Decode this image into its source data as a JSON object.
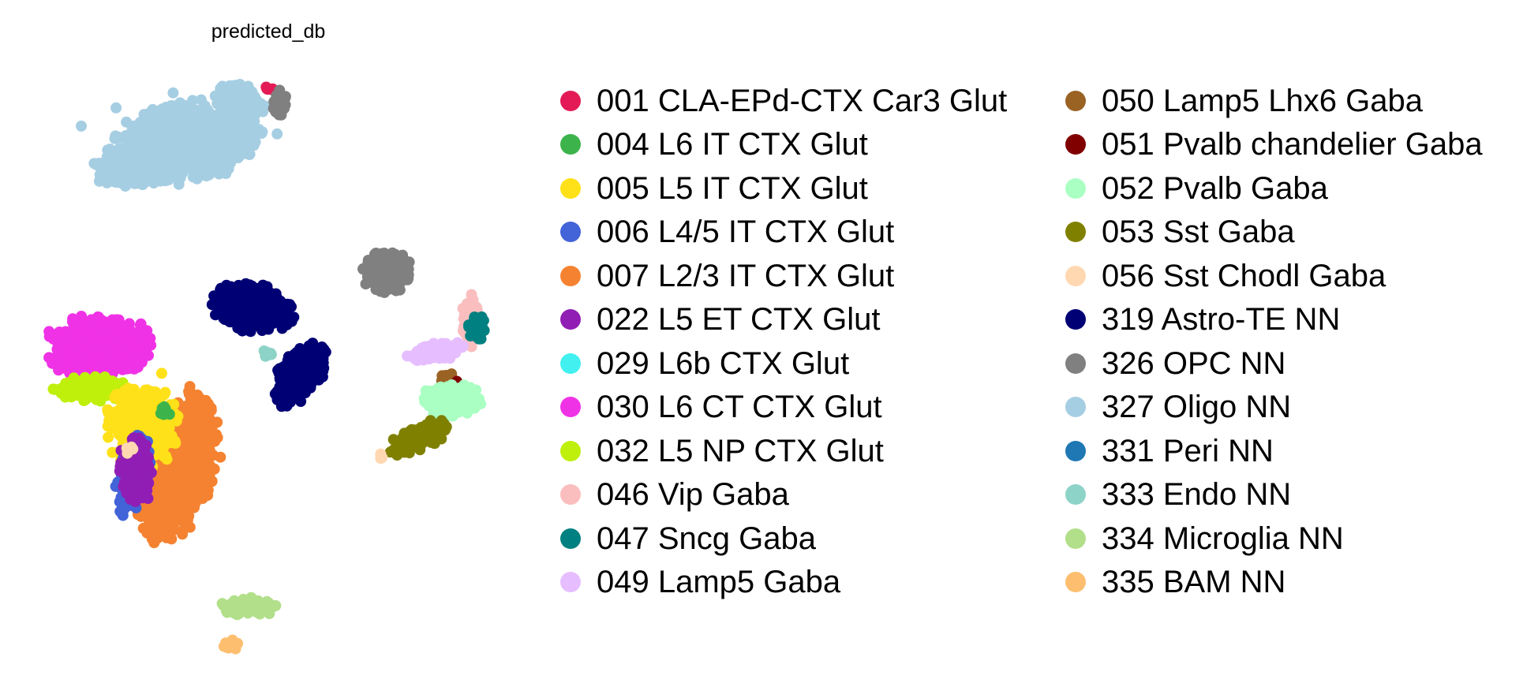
{
  "chart_data": {
    "type": "scatter",
    "title": "predicted_db",
    "xlabel": "",
    "ylabel": "",
    "grid": false,
    "axes": "off",
    "legend_position": "right",
    "legend_columns": 2,
    "series": [
      {
        "name": "001 CLA-EPd-CTX Car3 Glut",
        "color": "#e31a56"
      },
      {
        "name": "004 L6 IT CTX Glut",
        "color": "#3cb44b"
      },
      {
        "name": "005 L5 IT CTX Glut",
        "color": "#ffe119"
      },
      {
        "name": "006 L4/5 IT CTX Glut",
        "color": "#4363d8"
      },
      {
        "name": "007 L2/3 IT CTX Glut",
        "color": "#f58231"
      },
      {
        "name": "022 L5 ET CTX Glut",
        "color": "#911eb4"
      },
      {
        "name": "029 L6b CTX Glut",
        "color": "#42f0f0"
      },
      {
        "name": "030 L6 CT CTX Glut",
        "color": "#f032e6"
      },
      {
        "name": "032 L5 NP CTX Glut",
        "color": "#bff00c"
      },
      {
        "name": "046 Vip Gaba",
        "color": "#fabebe"
      },
      {
        "name": "047 Sncg Gaba",
        "color": "#008080"
      },
      {
        "name": "049 Lamp5 Gaba",
        "color": "#e6beff"
      },
      {
        "name": "050 Lamp5 Lhx6 Gaba",
        "color": "#9a6324"
      },
      {
        "name": "051 Pvalb chandelier Gaba",
        "color": "#800000"
      },
      {
        "name": "052 Pvalb Gaba",
        "color": "#aaffc3"
      },
      {
        "name": "053 Sst Gaba",
        "color": "#808000"
      },
      {
        "name": "056 Sst Chodl Gaba",
        "color": "#ffd8b1"
      },
      {
        "name": "319 Astro-TE NN",
        "color": "#000075"
      },
      {
        "name": "326 OPC NN",
        "color": "#808080"
      },
      {
        "name": "327 Oligo NN",
        "color": "#a6cee3"
      },
      {
        "name": "331 Peri NN",
        "color": "#1f78b4"
      },
      {
        "name": "333 Endo NN",
        "color": "#8dd3c7"
      },
      {
        "name": "334 Microglia NN",
        "color": "#b2df8a"
      },
      {
        "name": "335 BAM NN",
        "color": "#fdbf6f"
      }
    ]
  }
}
